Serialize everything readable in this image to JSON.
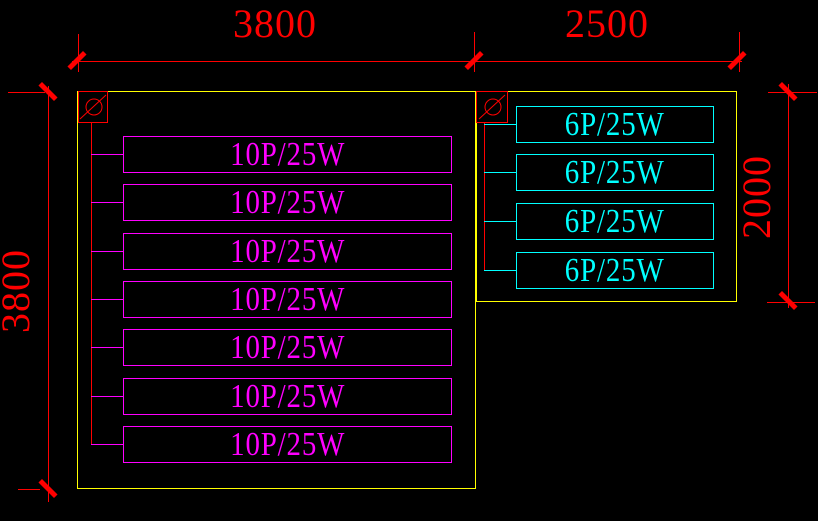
{
  "colors": {
    "background": "#000000",
    "room_outline": "#FFFF00",
    "dimension": "#FF0000",
    "left_fixture": "#FF00FF",
    "right_fixture": "#00FFFF"
  },
  "dimensions": {
    "top": [
      {
        "label": "3800"
      },
      {
        "label": "2500"
      }
    ],
    "left": {
      "label": "3800"
    },
    "right": {
      "label": "2000"
    }
  },
  "left_room": {
    "switch_icon": "circle-slash-icon",
    "fixtures": [
      {
        "label": "10P/25W"
      },
      {
        "label": "10P/25W"
      },
      {
        "label": "10P/25W"
      },
      {
        "label": "10P/25W"
      },
      {
        "label": "10P/25W"
      },
      {
        "label": "10P/25W"
      },
      {
        "label": "10P/25W"
      }
    ]
  },
  "right_room": {
    "switch_icon": "circle-slash-icon",
    "fixtures": [
      {
        "label": "6P/25W"
      },
      {
        "label": "6P/25W"
      },
      {
        "label": "6P/25W"
      },
      {
        "label": "6P/25W"
      }
    ]
  }
}
